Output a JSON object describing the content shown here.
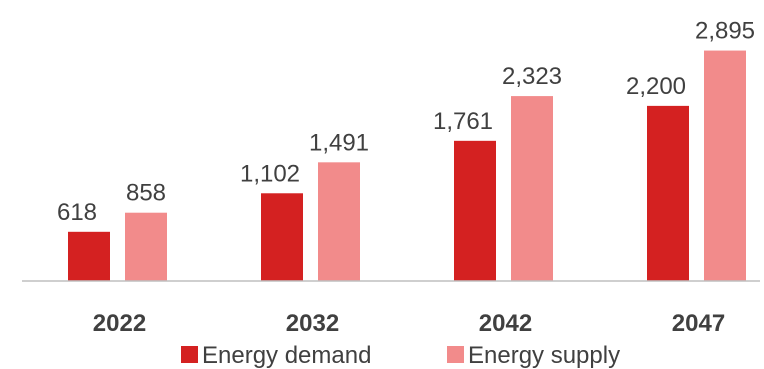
{
  "chart_data": {
    "type": "bar",
    "categories": [
      "2022",
      "2032",
      "2042",
      "2047"
    ],
    "series": [
      {
        "name": "Energy demand",
        "color": "#d42121",
        "values": [
          618,
          1102,
          1761,
          2200
        ],
        "labels": [
          "618",
          "1,102",
          "1,761",
          "2,200"
        ]
      },
      {
        "name": "Energy supply",
        "color": "#f28b8b",
        "values": [
          858,
          1491,
          2323,
          2895
        ],
        "labels": [
          "858",
          "1,491",
          "2,323",
          "2,895"
        ]
      }
    ],
    "title": "",
    "xlabel": "",
    "ylabel": "",
    "ylim": [
      0,
      3000
    ],
    "grid": false,
    "legend": "bottom-center",
    "axis_color": "#bfbfbf"
  }
}
